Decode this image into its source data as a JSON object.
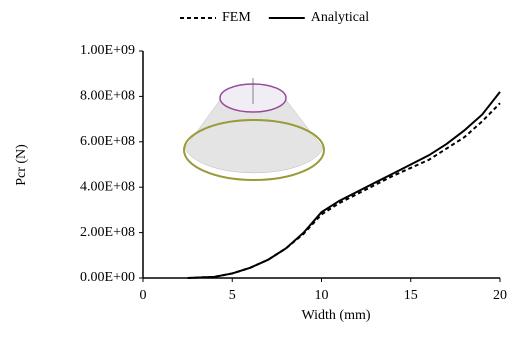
{
  "chart_data": {
    "type": "line",
    "xlabel": "Width (mm)",
    "ylabel": "Pcr (N)",
    "x": [
      2.5,
      4,
      5,
      6,
      7,
      8,
      9,
      10,
      11,
      12,
      13,
      14,
      15,
      16,
      17,
      18,
      19,
      20
    ],
    "series": [
      {
        "name": "FEM",
        "color": "#000000",
        "dash": true,
        "values": [
          0,
          5000000,
          20000000,
          45000000,
          80000000,
          130000000,
          195000000,
          280000000,
          330000000,
          370000000,
          410000000,
          450000000,
          485000000,
          520000000,
          570000000,
          620000000,
          690000000,
          770000000
        ]
      },
      {
        "name": "Analytical",
        "color": "#000000",
        "dash": false,
        "values": [
          0,
          5000000,
          20000000,
          45000000,
          80000000,
          130000000,
          200000000,
          290000000,
          340000000,
          380000000,
          420000000,
          460000000,
          500000000,
          540000000,
          590000000,
          650000000,
          720000000,
          820000000
        ]
      }
    ],
    "xlim": [
      0,
      20
    ],
    "xticks": [
      0,
      5,
      10,
      15,
      20
    ],
    "ylim": [
      0,
      1000000000
    ],
    "yticks": [
      {
        "value": 0,
        "label": "0.00E+00"
      },
      {
        "value": 200000000,
        "label": "2.00E+08"
      },
      {
        "value": 400000000,
        "label": "4.00E+08"
      },
      {
        "value": 600000000,
        "label": "6.00E+08"
      },
      {
        "value": 800000000,
        "label": "8.00E+08"
      },
      {
        "value": 1000000000,
        "label": "1.00E+09"
      }
    ],
    "grid": false,
    "legend": "top"
  }
}
